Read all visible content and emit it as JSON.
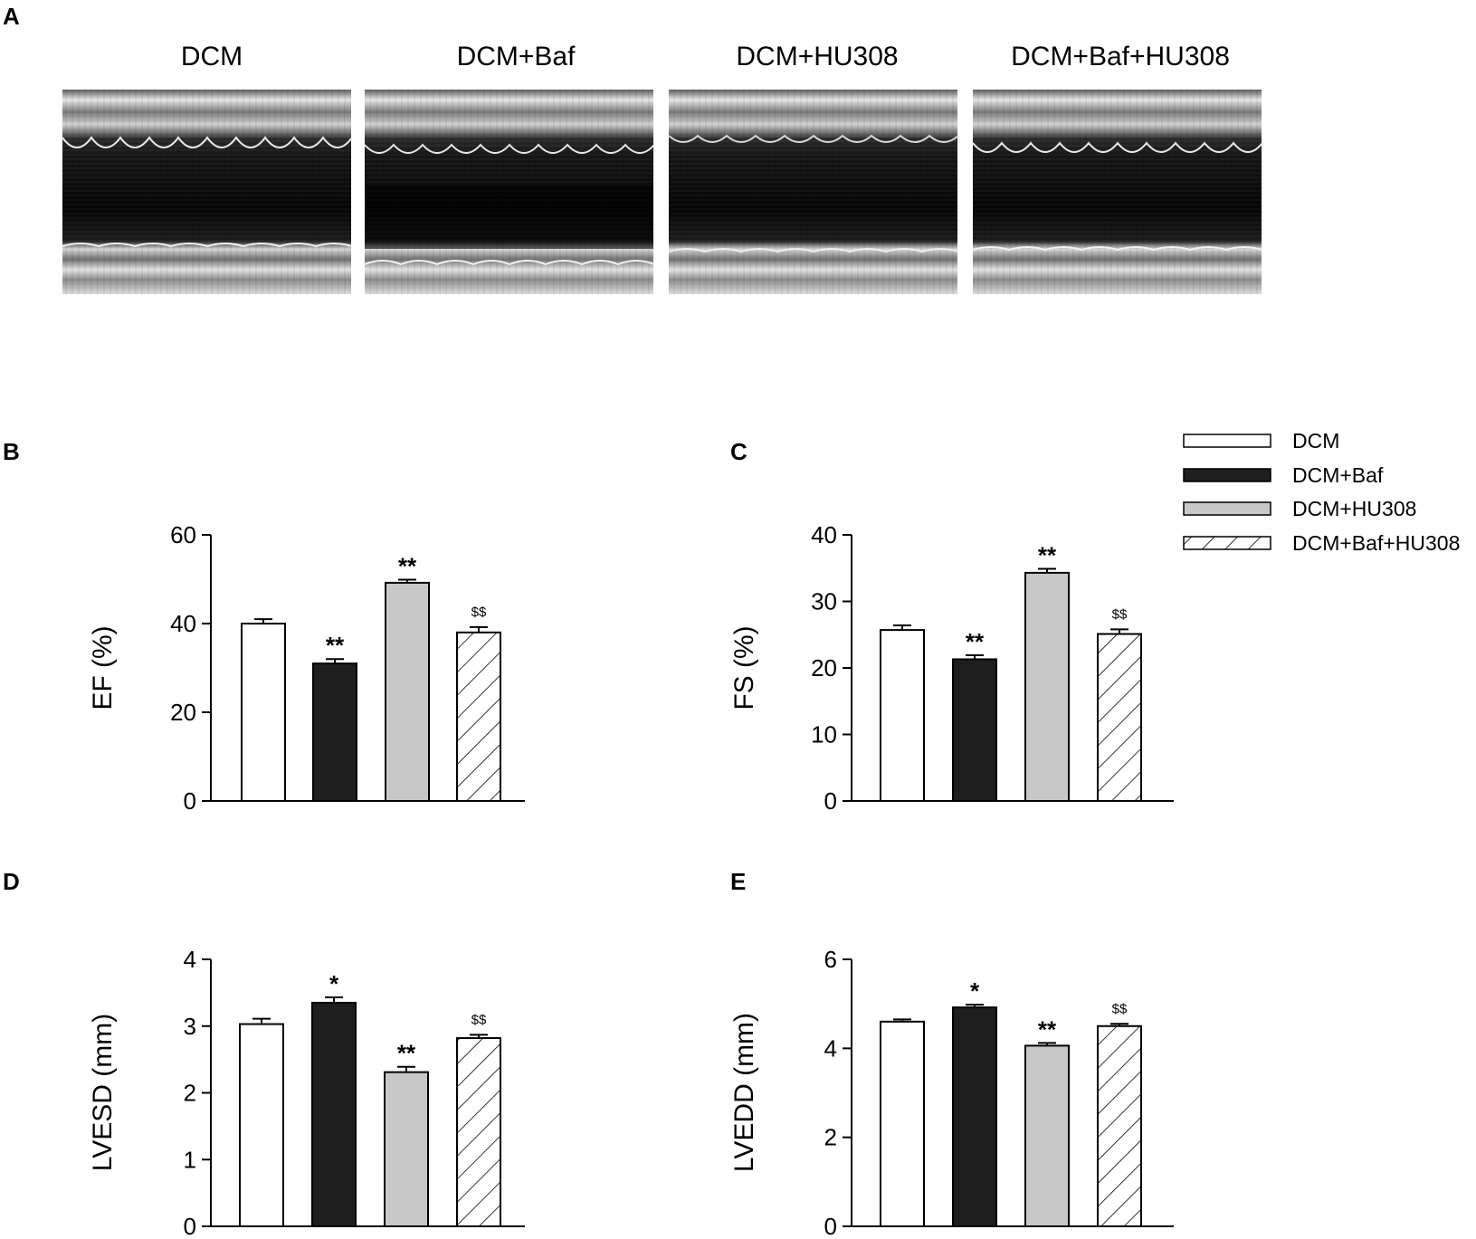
{
  "panel_a": {
    "letter": "A",
    "groups": [
      "DCM",
      "DCM+Baf",
      "DCM+HU308",
      "DCM+Baf+HU308"
    ]
  },
  "legend": {
    "entries": [
      {
        "label": "DCM",
        "fill": "white"
      },
      {
        "label": "DCM+Baf",
        "fill": "black"
      },
      {
        "label": "DCM+HU308",
        "fill": "gray"
      },
      {
        "label": "DCM+Baf+HU308",
        "fill": "hatch"
      }
    ]
  },
  "colors": {
    "white_bar": "#ffffff",
    "black_bar": "#1e1e1e",
    "gray_bar": "#c8c8c8",
    "axis": "#000000",
    "echo_dark": "#0b0b0b",
    "echo_light": "#dcdcdc"
  },
  "chart_data": [
    {
      "panel": "B",
      "type": "bar",
      "categories": [
        "DCM",
        "DCM+Baf",
        "DCM+HU308",
        "DCM+Baf+HU308"
      ],
      "values": [
        40,
        31,
        49.2,
        38
      ],
      "errors": [
        1.0,
        1.0,
        0.7,
        1.2
      ],
      "significance": [
        "",
        "**",
        "**",
        "$$"
      ],
      "ylabel": "EF (%)",
      "ylim": [
        0,
        60
      ],
      "yticks": [
        0,
        20,
        40,
        60
      ]
    },
    {
      "panel": "C",
      "type": "bar",
      "categories": [
        "DCM",
        "DCM+Baf",
        "DCM+HU308",
        "DCM+Baf+HU308"
      ],
      "values": [
        25.7,
        21.3,
        34.3,
        25.1
      ],
      "errors": [
        0.7,
        0.6,
        0.6,
        0.7
      ],
      "significance": [
        "",
        "**",
        "**",
        "$$"
      ],
      "ylabel": "FS (%)",
      "ylim": [
        0,
        40
      ],
      "yticks": [
        0,
        10,
        20,
        30,
        40
      ]
    },
    {
      "panel": "D",
      "type": "bar",
      "categories": [
        "DCM",
        "DCM+Baf",
        "DCM+HU308",
        "DCM+Baf+HU308"
      ],
      "values": [
        3.03,
        3.35,
        2.31,
        2.82
      ],
      "errors": [
        0.08,
        0.08,
        0.08,
        0.05
      ],
      "significance": [
        "",
        "*",
        "**",
        "$$"
      ],
      "ylabel": "LVESD (mm)",
      "ylim": [
        0,
        4
      ],
      "yticks": [
        0,
        1,
        2,
        3,
        4
      ]
    },
    {
      "panel": "E",
      "type": "bar",
      "categories": [
        "DCM",
        "DCM+Baf",
        "DCM+HU308",
        "DCM+Baf+HU308"
      ],
      "values": [
        4.6,
        4.92,
        4.06,
        4.5
      ],
      "errors": [
        0.05,
        0.06,
        0.06,
        0.05
      ],
      "significance": [
        "",
        "*",
        "**",
        "$$"
      ],
      "ylabel": "LVEDD (mm)",
      "ylim": [
        0,
        6
      ],
      "yticks": [
        0,
        2,
        4,
        6
      ]
    }
  ]
}
